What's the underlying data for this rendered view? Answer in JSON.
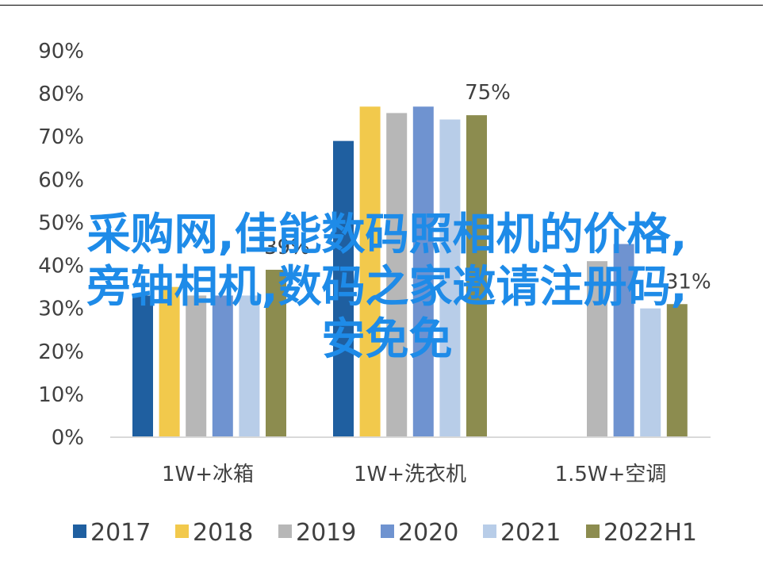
{
  "chart_data": {
    "type": "bar",
    "categories": [
      "1W+冰箱",
      "1W+洗衣机",
      "1.5W+空调"
    ],
    "series": [
      {
        "name": "2017",
        "color": "#1f5fa0",
        "values": [
          33,
          69,
          null
        ]
      },
      {
        "name": "2018",
        "color": "#f2c94c",
        "values": [
          35,
          77,
          null
        ]
      },
      {
        "name": "2019",
        "color": "#b7b7b7",
        "values": [
          33,
          75.5,
          41
        ]
      },
      {
        "name": "2020",
        "color": "#6f93d0",
        "values": [
          33,
          77,
          45
        ]
      },
      {
        "name": "2021",
        "color": "#b8cde8",
        "values": [
          33,
          74,
          30
        ]
      },
      {
        "name": "2022H1",
        "color": "#8c8c4f",
        "values": [
          39,
          75,
          31
        ]
      }
    ],
    "ylim": [
      0,
      90
    ],
    "yticks": [
      "0%",
      "10%",
      "20%",
      "30%",
      "40%",
      "50%",
      "60%",
      "70%",
      "80%",
      "90%"
    ],
    "data_labels": [
      {
        "category_index": 0,
        "series_index": 5,
        "text": "39%"
      },
      {
        "category_index": 1,
        "series_index": 5,
        "text": "75%"
      },
      {
        "category_index": 2,
        "series_index": 5,
        "text": "31%"
      }
    ],
    "legend_position": "bottom",
    "grid": false
  },
  "overlay": {
    "line1": "采购网,佳能数码照相机的价格,",
    "line2": "旁轴相机,数码之家邀请注册码,",
    "line3": "安免免"
  }
}
